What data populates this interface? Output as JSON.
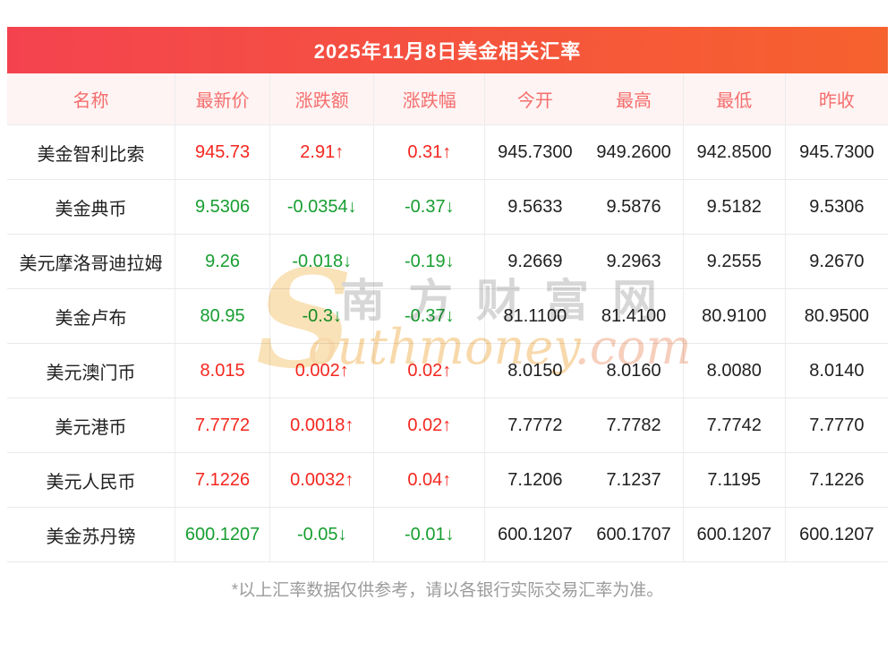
{
  "banner": {
    "title": "2025年11月8日美金相关汇率",
    "gradient_left": "#f4434f",
    "gradient_right": "#f6622e"
  },
  "colors": {
    "up": "#f4271f",
    "down": "#179e31",
    "header_text": "#f56e6e"
  },
  "chart_data": {
    "type": "table",
    "title": "2025年11月8日美金相关汇率",
    "columns": [
      "名称",
      "最新价",
      "涨跌额",
      "涨跌幅",
      "今开",
      "最高",
      "最低",
      "昨收"
    ],
    "rows": [
      {
        "name": "美金智利比索",
        "latest": "945.73",
        "change": "2.91↑",
        "change_pct": "0.31↑",
        "open": "945.7300",
        "high": "949.2600",
        "low": "942.8500",
        "prev_close": "945.7300",
        "trend": "up"
      },
      {
        "name": "美金典币",
        "latest": "9.5306",
        "change": "-0.0354↓",
        "change_pct": "-0.37↓",
        "open": "9.5633",
        "high": "9.5876",
        "low": "9.5182",
        "prev_close": "9.5306",
        "trend": "down"
      },
      {
        "name": "美元摩洛哥迪拉姆",
        "latest": "9.26",
        "change": "-0.018↓",
        "change_pct": "-0.19↓",
        "open": "9.2669",
        "high": "9.2963",
        "low": "9.2555",
        "prev_close": "9.2670",
        "trend": "down"
      },
      {
        "name": "美金卢布",
        "latest": "80.95",
        "change": "-0.3↓",
        "change_pct": "-0.37↓",
        "open": "81.1100",
        "high": "81.4100",
        "low": "80.9100",
        "prev_close": "80.9500",
        "trend": "down"
      },
      {
        "name": "美元澳门币",
        "latest": "8.015",
        "change": "0.002↑",
        "change_pct": "0.02↑",
        "open": "8.0150",
        "high": "8.0160",
        "low": "8.0080",
        "prev_close": "8.0140",
        "trend": "up"
      },
      {
        "name": "美元港币",
        "latest": "7.7772",
        "change": "0.0018↑",
        "change_pct": "0.02↑",
        "open": "7.7772",
        "high": "7.7782",
        "low": "7.7742",
        "prev_close": "7.7770",
        "trend": "up"
      },
      {
        "name": "美元人民币",
        "latest": "7.1226",
        "change": "0.0032↑",
        "change_pct": "0.04↑",
        "open": "7.1206",
        "high": "7.1237",
        "low": "7.1195",
        "prev_close": "7.1226",
        "trend": "up"
      },
      {
        "name": "美金苏丹镑",
        "latest": "600.1207",
        "change": "-0.05↓",
        "change_pct": "-0.01↓",
        "open": "600.1207",
        "high": "600.1707",
        "low": "600.1207",
        "prev_close": "600.1207",
        "trend": "down"
      }
    ]
  },
  "watermark": {
    "s": "S",
    "cn": "南方财富网",
    "en": "outhmoney",
    "domain": ".com"
  },
  "footer": {
    "note": "*以上汇率数据仅供参考，请以各银行实际交易汇率为准。"
  }
}
